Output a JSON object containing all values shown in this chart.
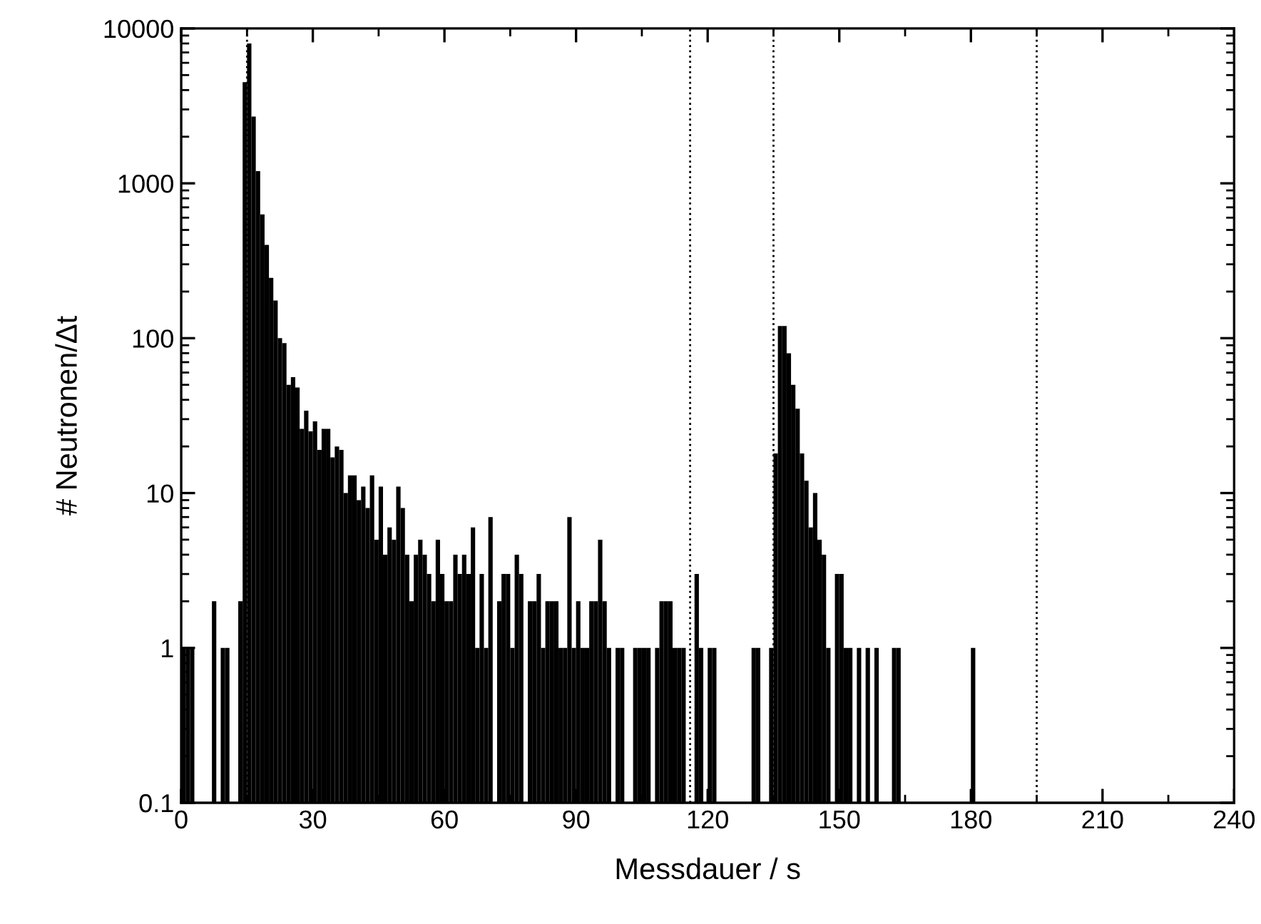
{
  "chart_data": {
    "type": "histogram",
    "xlabel": "Messdauer / s",
    "ylabel": "# Neutronen/Δt",
    "color": "#000000",
    "bins": [
      0,
      1,
      2,
      3,
      4,
      5,
      6,
      7,
      8,
      9,
      10,
      11,
      12,
      13,
      14,
      15,
      16,
      17,
      18,
      19,
      20,
      21,
      22,
      23,
      24,
      25,
      26,
      27,
      28,
      29,
      30,
      31,
      32,
      33,
      34,
      35,
      36,
      37,
      38,
      39,
      40,
      41,
      42,
      43,
      44,
      45,
      46,
      47,
      48,
      49,
      50,
      51,
      52,
      53,
      54,
      55,
      56,
      57,
      58,
      59,
      60,
      61,
      62,
      63,
      64,
      65,
      66,
      67,
      68,
      69,
      70,
      71,
      72,
      73,
      74,
      75,
      76,
      77,
      78,
      79,
      80,
      81,
      82,
      83,
      84,
      85,
      86,
      87,
      88,
      89,
      90,
      91,
      92,
      93,
      94,
      95,
      96,
      97,
      98,
      99,
      100,
      101,
      102,
      103,
      104,
      105,
      106,
      107,
      108,
      109,
      110,
      111,
      112,
      113,
      114,
      115,
      116,
      117,
      118,
      119,
      120,
      121,
      122,
      123,
      124,
      125,
      126,
      127,
      128,
      129,
      130,
      131,
      132,
      133,
      134,
      135,
      136,
      137,
      138,
      139,
      140,
      141,
      142,
      143,
      144,
      145,
      146,
      147,
      148,
      149,
      150,
      151,
      152,
      153,
      154,
      155,
      156,
      157,
      158,
      159,
      160,
      161,
      162,
      163,
      164,
      165,
      166,
      167,
      168,
      169,
      170,
      171,
      172,
      173,
      174,
      175,
      176,
      177,
      178,
      179,
      180,
      181
    ],
    "values": [
      1,
      1,
      1,
      null,
      null,
      null,
      null,
      2,
      null,
      1,
      1,
      null,
      null,
      2,
      4500,
      8000,
      2700,
      1200,
      630,
      400,
      245,
      175,
      100,
      93,
      50,
      56,
      48,
      26,
      34,
      25,
      29,
      19,
      26,
      26,
      17,
      20,
      19,
      10,
      13,
      13,
      9,
      11,
      8,
      13,
      5,
      11,
      4,
      6,
      5,
      11,
      8,
      4,
      2,
      4,
      5,
      4,
      3,
      2,
      5,
      3,
      2,
      2,
      4,
      3,
      4,
      3,
      6,
      1,
      3,
      1,
      7,
      null,
      2,
      3,
      3,
      1,
      4,
      3,
      null,
      2,
      2,
      3,
      1,
      2,
      2,
      2,
      1,
      1,
      7,
      1,
      2,
      1,
      1,
      2,
      2,
      5,
      2,
      1,
      null,
      1,
      1,
      null,
      null,
      1,
      1,
      1,
      1,
      null,
      1,
      2,
      2,
      2,
      1,
      1,
      1,
      null,
      null,
      3,
      1,
      null,
      1,
      1,
      null,
      null,
      null,
      null,
      null,
      null,
      null,
      null,
      1,
      1,
      null,
      null,
      1,
      18,
      120,
      120,
      80,
      50,
      35,
      18,
      12,
      6,
      10,
      5,
      4,
      1,
      null,
      3,
      3,
      1,
      1,
      null,
      1,
      null,
      1,
      null,
      1,
      null,
      null,
      null,
      1,
      1,
      null,
      null,
      null,
      null,
      null,
      null,
      null,
      null,
      null,
      null,
      null,
      null,
      null,
      null,
      null,
      null,
      1
    ],
    "log": "y",
    "xlim": [
      0,
      240
    ],
    "xticks": [
      0,
      30,
      60,
      90,
      120,
      150,
      180,
      210,
      240
    ],
    "ylim": [
      0.1,
      10000
    ],
    "yticks": [
      0.1,
      1,
      10,
      100,
      1000,
      10000
    ],
    "grid": false,
    "ref_lines": [
      {
        "axis": "x",
        "value": 15,
        "color": "#000000",
        "line_style": "dotted"
      },
      {
        "axis": "x",
        "value": 116,
        "color": "#000000",
        "line_style": "dotted"
      },
      {
        "axis": "x",
        "value": 135,
        "color": "#000000",
        "line_style": "dotted"
      },
      {
        "axis": "x",
        "value": 195,
        "color": "#000000",
        "line_style": "dotted"
      }
    ]
  }
}
